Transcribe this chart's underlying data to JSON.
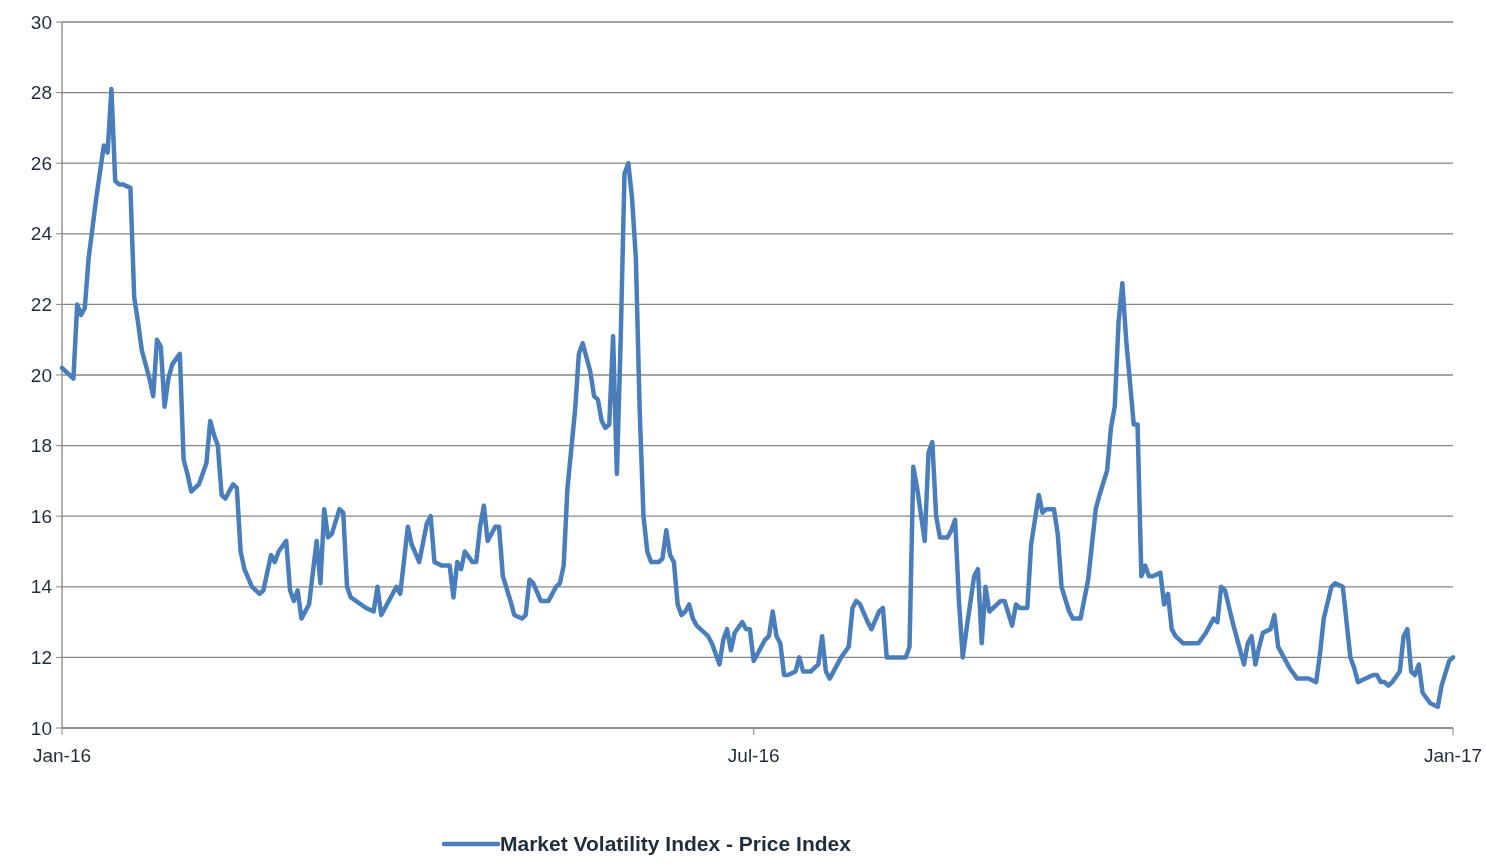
{
  "chart_data": {
    "type": "line",
    "x": [
      "2016-01-01",
      "2016-01-04",
      "2016-01-05",
      "2016-01-06",
      "2016-01-07",
      "2016-01-08",
      "2016-01-10",
      "2016-01-12",
      "2016-01-13",
      "2016-01-14",
      "2016-01-15",
      "2016-01-16",
      "2016-01-17",
      "2016-01-19",
      "2016-01-20",
      "2016-01-21",
      "2016-01-22",
      "2016-01-24",
      "2016-01-25",
      "2016-01-26",
      "2016-01-27",
      "2016-01-28",
      "2016-01-29",
      "2016-01-30",
      "2016-02-01",
      "2016-02-02",
      "2016-02-03",
      "2016-02-04",
      "2016-02-06",
      "2016-02-08",
      "2016-02-09",
      "2016-02-10",
      "2016-02-11",
      "2016-02-12",
      "2016-02-13",
      "2016-02-15",
      "2016-02-16",
      "2016-02-17",
      "2016-02-18",
      "2016-02-20",
      "2016-02-22",
      "2016-02-23",
      "2016-02-25",
      "2016-02-26",
      "2016-02-27",
      "2016-02-29",
      "2016-03-01",
      "2016-03-02",
      "2016-03-03",
      "2016-03-04",
      "2016-03-06",
      "2016-03-07",
      "2016-03-08",
      "2016-03-09",
      "2016-03-10",
      "2016-03-11",
      "2016-03-12",
      "2016-03-14",
      "2016-03-15",
      "2016-03-16",
      "2016-03-17",
      "2016-03-21",
      "2016-03-23",
      "2016-03-24",
      "2016-03-25",
      "2016-03-27",
      "2016-03-29",
      "2016-03-30",
      "2016-04-01",
      "2016-04-02",
      "2016-04-04",
      "2016-04-06",
      "2016-04-07",
      "2016-04-08",
      "2016-04-10",
      "2016-04-12",
      "2016-04-13",
      "2016-04-14",
      "2016-04-15",
      "2016-04-16",
      "2016-04-18",
      "2016-04-19",
      "2016-04-20",
      "2016-04-21",
      "2016-04-22",
      "2016-04-24",
      "2016-04-25",
      "2016-04-26",
      "2016-04-28",
      "2016-04-29",
      "2016-05-01",
      "2016-05-02",
      "2016-05-03",
      "2016-05-04",
      "2016-05-06",
      "2016-05-08",
      "2016-05-09",
      "2016-05-10",
      "2016-05-11",
      "2016-05-12",
      "2016-05-13",
      "2016-05-15",
      "2016-05-16",
      "2016-05-17",
      "2016-05-18",
      "2016-05-19",
      "2016-05-20",
      "2016-05-21",
      "2016-05-22",
      "2016-05-23",
      "2016-05-24",
      "2016-05-25",
      "2016-05-26",
      "2016-05-27",
      "2016-05-28",
      "2016-05-29",
      "2016-05-30",
      "2016-05-31",
      "2016-06-01",
      "2016-06-02",
      "2016-06-03",
      "2016-06-04",
      "2016-06-06",
      "2016-06-07",
      "2016-06-08",
      "2016-06-09",
      "2016-06-10",
      "2016-06-11",
      "2016-06-12",
      "2016-06-13",
      "2016-06-14",
      "2016-06-15",
      "2016-06-16",
      "2016-06-17",
      "2016-06-19",
      "2016-06-20",
      "2016-06-22",
      "2016-06-23",
      "2016-06-24",
      "2016-06-25",
      "2016-06-26",
      "2016-06-28",
      "2016-06-29",
      "2016-06-30",
      "2016-07-01",
      "2016-07-02",
      "2016-07-04",
      "2016-07-05",
      "2016-07-06",
      "2016-07-07",
      "2016-07-08",
      "2016-07-09",
      "2016-07-10",
      "2016-07-12",
      "2016-07-13",
      "2016-07-14",
      "2016-07-16",
      "2016-07-18",
      "2016-07-19",
      "2016-07-20",
      "2016-07-21",
      "2016-07-24",
      "2016-07-26",
      "2016-07-27",
      "2016-07-28",
      "2016-07-29",
      "2016-07-31",
      "2016-08-01",
      "2016-08-03",
      "2016-08-04",
      "2016-08-05",
      "2016-08-07",
      "2016-08-09",
      "2016-08-10",
      "2016-08-11",
      "2016-08-12",
      "2016-08-13",
      "2016-08-15",
      "2016-08-16",
      "2016-08-17",
      "2016-08-18",
      "2016-08-19",
      "2016-08-21",
      "2016-08-22",
      "2016-08-23",
      "2016-08-24",
      "2016-08-25",
      "2016-08-26",
      "2016-08-28",
      "2016-08-29",
      "2016-08-30",
      "2016-08-31",
      "2016-09-01",
      "2016-09-02",
      "2016-09-04",
      "2016-09-05",
      "2016-09-07",
      "2016-09-08",
      "2016-09-09",
      "2016-09-11",
      "2016-09-12",
      "2016-09-13",
      "2016-09-14",
      "2016-09-15",
      "2016-09-16",
      "2016-09-18",
      "2016-09-19",
      "2016-09-20",
      "2016-09-22",
      "2016-09-23",
      "2016-09-25",
      "2016-09-27",
      "2016-09-28",
      "2016-09-29",
      "2016-09-30",
      "2016-10-02",
      "2016-10-03",
      "2016-10-04",
      "2016-10-05",
      "2016-10-06",
      "2016-10-07",
      "2016-10-09",
      "2016-10-10",
      "2016-10-11",
      "2016-10-12",
      "2016-10-13",
      "2016-10-14",
      "2016-10-16",
      "2016-10-17",
      "2016-10-18",
      "2016-10-19",
      "2016-10-20",
      "2016-10-22",
      "2016-10-23",
      "2016-10-25",
      "2016-10-26",
      "2016-10-28",
      "2016-10-30",
      "2016-10-31",
      "2016-11-01",
      "2016-11-02",
      "2016-11-04",
      "2016-11-06",
      "2016-11-07",
      "2016-11-08",
      "2016-11-09",
      "2016-11-10",
      "2016-11-11",
      "2016-11-12",
      "2016-11-14",
      "2016-11-15",
      "2016-11-16",
      "2016-11-18",
      "2016-11-19",
      "2016-11-21",
      "2016-11-22",
      "2016-11-24",
      "2016-11-26",
      "2016-11-27",
      "2016-11-28",
      "2016-11-30",
      "2016-12-01",
      "2016-12-03",
      "2016-12-05",
      "2016-12-06",
      "2016-12-07",
      "2016-12-09",
      "2016-12-11",
      "2016-12-12",
      "2016-12-13",
      "2016-12-14",
      "2016-12-15",
      "2016-12-16",
      "2016-12-18",
      "2016-12-19",
      "2016-12-20",
      "2016-12-21",
      "2016-12-22",
      "2016-12-23",
      "2016-12-24",
      "2016-12-26",
      "2016-12-28",
      "2016-12-29",
      "2016-12-31",
      "2017-01-01"
    ],
    "series": [
      {
        "name": "Market Volatility Index - Price Index",
        "color": "#4a7ebb",
        "values": [
          20.2,
          19.9,
          22.0,
          21.7,
          21.9,
          23.3,
          25.0,
          26.5,
          26.3,
          28.1,
          25.5,
          25.4,
          25.4,
          25.3,
          22.2,
          21.5,
          20.7,
          19.9,
          19.4,
          21.0,
          20.8,
          19.1,
          19.9,
          20.3,
          20.6,
          17.6,
          17.2,
          16.7,
          16.9,
          17.5,
          18.7,
          18.3,
          18.0,
          16.6,
          16.5,
          16.9,
          16.8,
          15.0,
          14.5,
          14.0,
          13.8,
          13.9,
          14.9,
          14.7,
          15.0,
          15.3,
          13.9,
          13.6,
          13.9,
          13.1,
          13.5,
          14.4,
          15.3,
          14.1,
          16.2,
          15.4,
          15.5,
          16.2,
          16.1,
          14.0,
          13.7,
          13.4,
          13.3,
          14.0,
          13.2,
          13.6,
          14.0,
          13.8,
          15.7,
          15.2,
          14.7,
          15.8,
          16.0,
          14.7,
          14.6,
          14.6,
          13.7,
          14.7,
          14.5,
          15.0,
          14.7,
          14.7,
          15.7,
          16.3,
          15.3,
          15.7,
          15.7,
          14.3,
          13.6,
          13.2,
          13.1,
          13.2,
          14.2,
          14.1,
          13.6,
          13.6,
          13.8,
          14.0,
          14.1,
          14.6,
          16.8,
          19.0,
          20.6,
          20.9,
          20.5,
          20.1,
          19.4,
          19.3,
          18.7,
          18.5,
          18.6,
          21.1,
          17.2,
          21.0,
          25.7,
          26.0,
          25.0,
          23.3,
          19.0,
          16.0,
          15.0,
          14.7,
          14.7,
          14.8,
          15.6,
          14.9,
          14.7,
          13.5,
          13.2,
          13.3,
          13.5,
          13.1,
          12.9,
          12.8,
          12.6,
          12.4,
          11.8,
          12.5,
          12.8,
          12.2,
          12.7,
          13.0,
          12.8,
          12.8,
          11.9,
          12.1,
          12.5,
          12.6,
          13.3,
          12.6,
          12.4,
          11.5,
          11.5,
          11.6,
          12.0,
          11.6,
          11.6,
          11.8,
          12.6,
          11.6,
          11.4,
          12.0,
          12.3,
          13.4,
          13.6,
          13.5,
          13.0,
          12.8,
          13.3,
          13.4,
          12.0,
          12.0,
          12.0,
          12.0,
          12.3,
          17.4,
          16.8,
          15.3,
          17.8,
          18.1,
          16.0,
          15.4,
          15.4,
          15.6,
          15.9,
          13.6,
          12.0,
          12.8,
          14.3,
          14.5,
          12.4,
          14.0,
          13.3,
          13.4,
          13.6,
          13.6,
          12.9,
          13.5,
          13.4,
          13.4,
          15.2,
          15.9,
          16.6,
          16.1,
          16.2,
          16.2,
          15.5,
          14.0,
          13.3,
          13.1,
          13.1,
          14.2,
          15.2,
          16.2,
          16.6,
          17.3,
          18.5,
          19.1,
          21.5,
          22.6,
          21.0,
          18.6,
          18.6,
          14.3,
          14.6,
          14.3,
          14.3,
          14.4,
          13.5,
          13.8,
          12.8,
          12.6,
          12.4,
          12.4,
          12.4,
          12.4,
          12.7,
          13.1,
          13.0,
          14.0,
          13.9,
          13.0,
          12.2,
          11.8,
          12.4,
          12.6,
          11.8,
          12.3,
          12.7,
          12.8,
          13.2,
          12.3,
          11.9,
          11.7,
          11.4,
          11.4,
          11.4,
          11.3,
          12.1,
          13.1,
          14.0,
          14.1,
          14.0,
          12.0,
          11.7,
          11.3,
          11.4,
          11.5,
          11.5,
          11.3,
          11.3,
          11.2,
          11.3,
          11.6,
          12.6,
          12.8,
          11.6,
          11.5,
          11.8,
          11.0,
          10.7,
          10.6,
          11.2,
          11.9,
          12.0
        ]
      }
    ],
    "xlim": [
      "2016-01-01",
      "2017-01-01"
    ],
    "xticks": [
      {
        "value": "2016-01-01",
        "label": "Jan-16"
      },
      {
        "value": "2016-07-01",
        "label": "Jul-16"
      },
      {
        "value": "2017-01-01",
        "label": "Jan-17"
      }
    ],
    "ylim": [
      10,
      30
    ],
    "yticks": [
      10,
      12,
      14,
      16,
      18,
      20,
      22,
      24,
      26,
      28,
      30
    ],
    "grid": "y",
    "legend": "bottom",
    "marker": "none",
    "line_style": "solid"
  }
}
